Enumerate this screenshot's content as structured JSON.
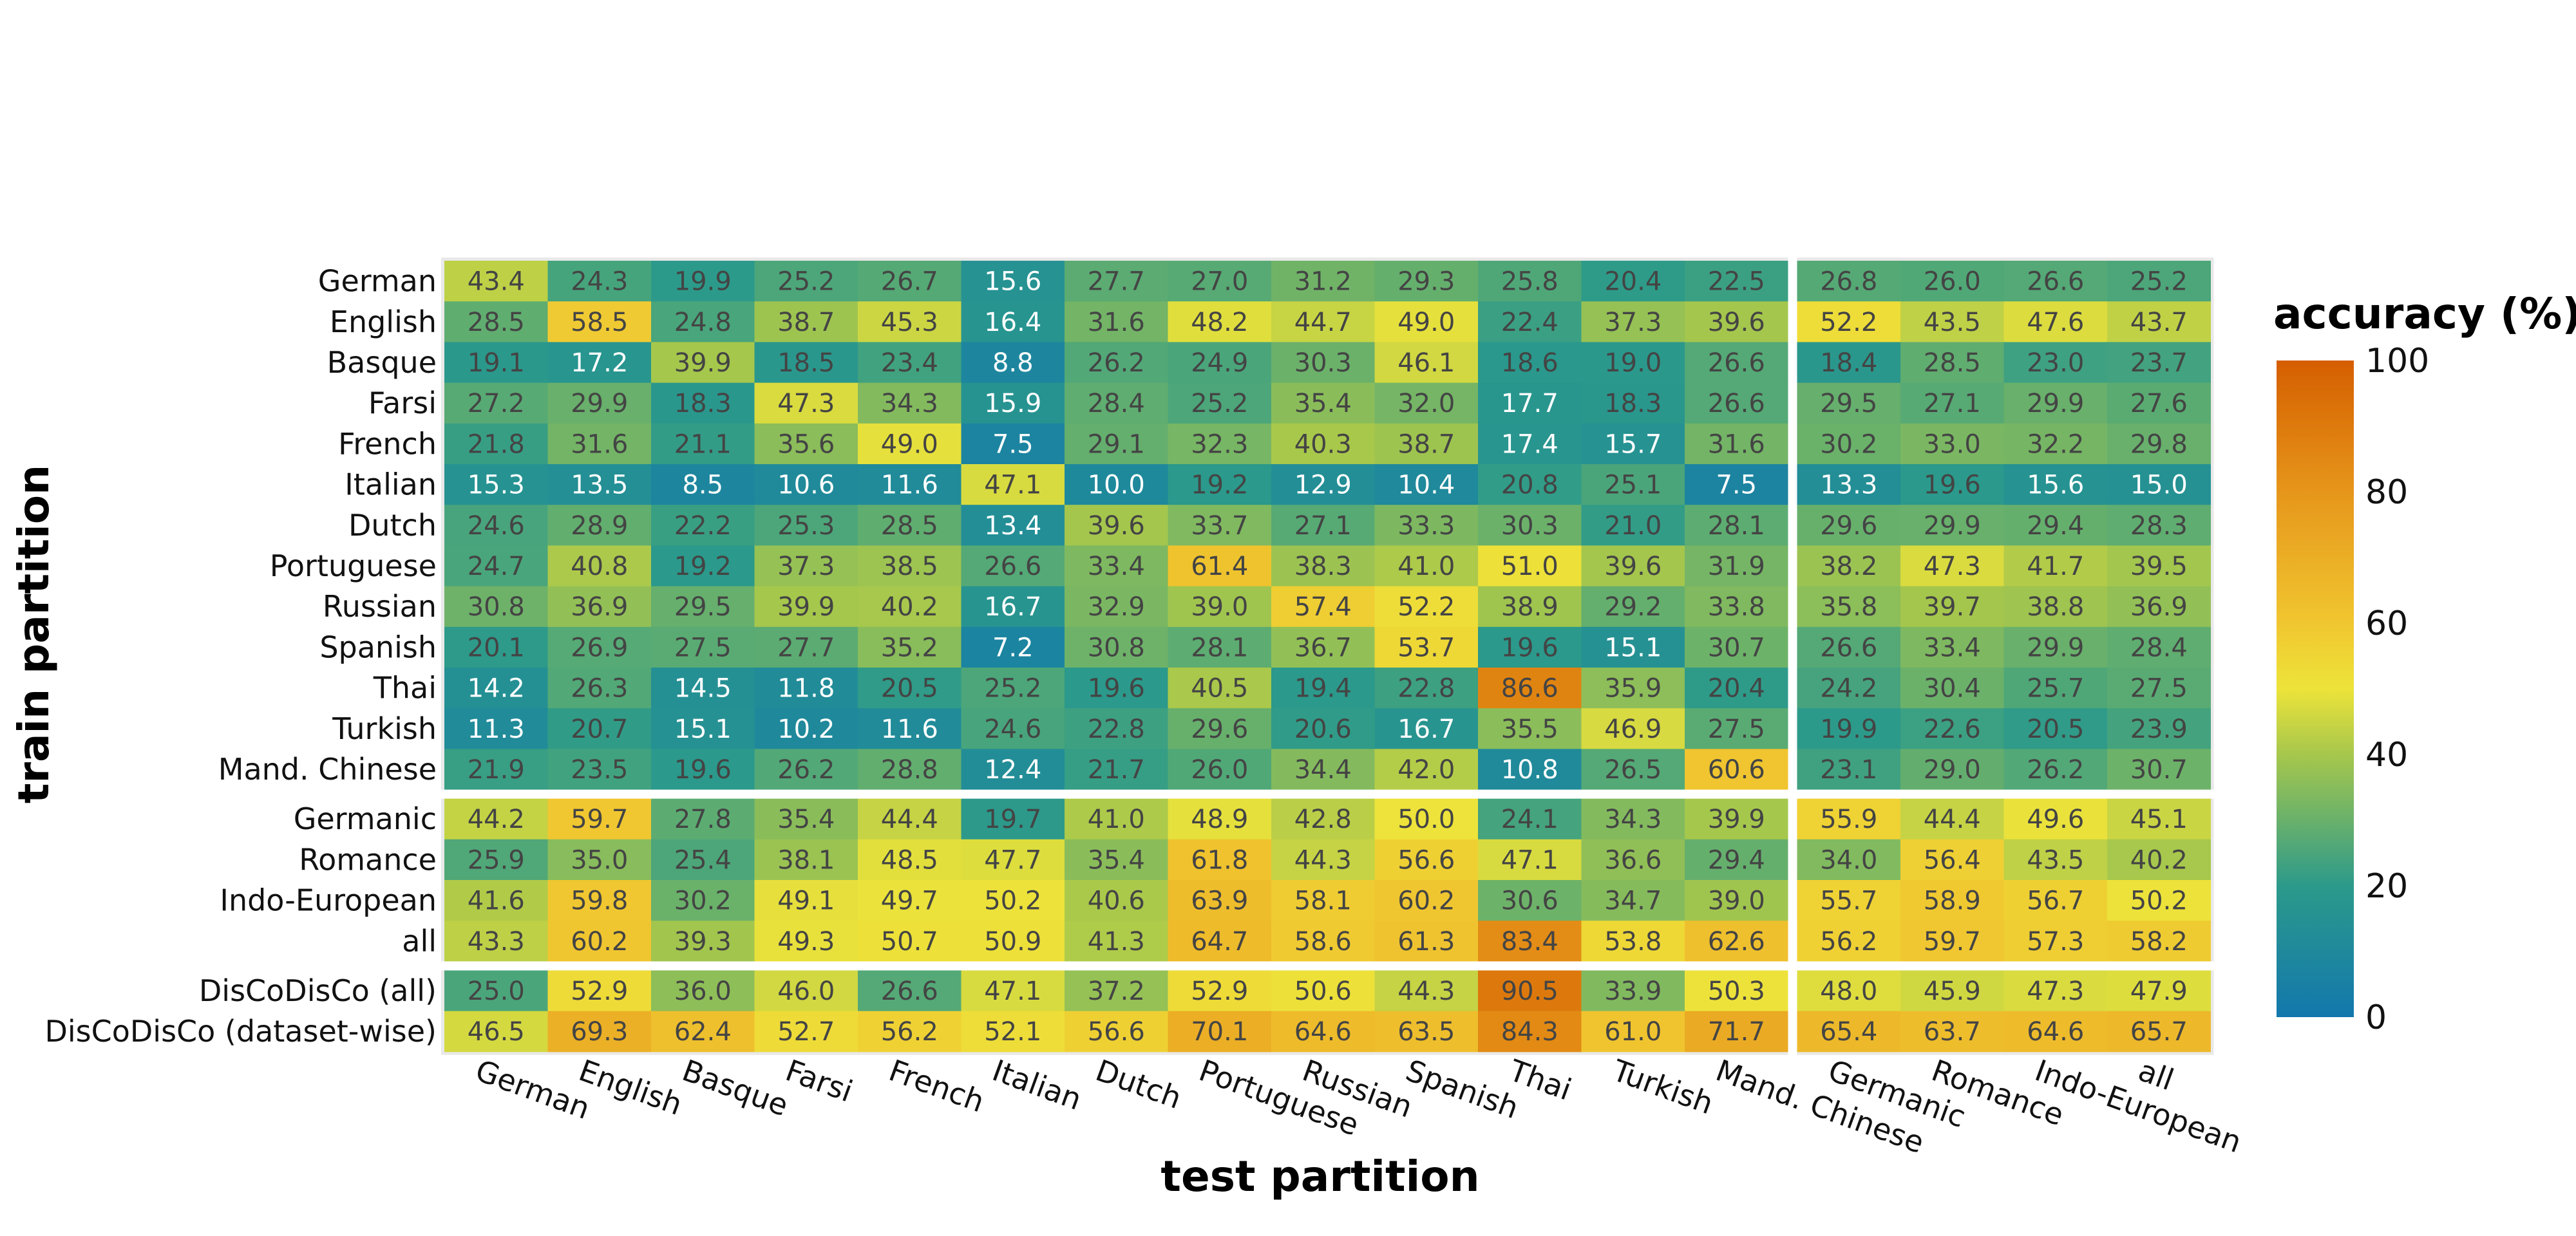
{
  "chart_data": {
    "type": "heatmap",
    "xlabel": "test partition",
    "ylabel": "train partition",
    "x_categories": [
      "German",
      "English",
      "Basque",
      "Farsi",
      "French",
      "Italian",
      "Dutch",
      "Portuguese",
      "Russian",
      "Spanish",
      "Thai",
      "Turkish",
      "Mand. Chinese",
      "Germanic",
      "Romance",
      "Indo-European",
      "all"
    ],
    "y_categories": [
      "German",
      "English",
      "Basque",
      "Farsi",
      "French",
      "Italian",
      "Dutch",
      "Portuguese",
      "Russian",
      "Spanish",
      "Thai",
      "Turkish",
      "Mand. Chinese",
      "Germanic",
      "Romance",
      "Indo-European",
      "all",
      "DisCoDisCo (all)",
      "DisCoDisCo (dataset-wise)"
    ],
    "values": [
      [
        43.4,
        24.3,
        19.9,
        25.2,
        26.7,
        15.6,
        27.7,
        27.0,
        31.2,
        29.3,
        25.8,
        20.4,
        22.5,
        26.8,
        26.0,
        26.6,
        25.2
      ],
      [
        28.5,
        58.5,
        24.8,
        38.7,
        45.3,
        16.4,
        31.6,
        48.2,
        44.7,
        49.0,
        22.4,
        37.3,
        39.6,
        52.2,
        43.5,
        47.6,
        43.7
      ],
      [
        19.1,
        17.2,
        39.9,
        18.5,
        23.4,
        8.8,
        26.2,
        24.9,
        30.3,
        46.1,
        18.6,
        19.0,
        26.6,
        18.4,
        28.5,
        23.0,
        23.7
      ],
      [
        27.2,
        29.9,
        18.3,
        47.3,
        34.3,
        15.9,
        28.4,
        25.2,
        35.4,
        32.0,
        17.7,
        18.3,
        26.6,
        29.5,
        27.1,
        29.9,
        27.6
      ],
      [
        21.8,
        31.6,
        21.1,
        35.6,
        49.0,
        7.5,
        29.1,
        32.3,
        40.3,
        38.7,
        17.4,
        15.7,
        31.6,
        30.2,
        33.0,
        32.2,
        29.8
      ],
      [
        15.3,
        13.5,
        8.5,
        10.6,
        11.6,
        47.1,
        10.0,
        19.2,
        12.9,
        10.4,
        20.8,
        25.1,
        7.5,
        13.3,
        19.6,
        15.6,
        15.0
      ],
      [
        24.6,
        28.9,
        22.2,
        25.3,
        28.5,
        13.4,
        39.6,
        33.7,
        27.1,
        33.3,
        30.3,
        21.0,
        28.1,
        29.6,
        29.9,
        29.4,
        28.3
      ],
      [
        24.7,
        40.8,
        19.2,
        37.3,
        38.5,
        26.6,
        33.4,
        61.4,
        38.3,
        41.0,
        51.0,
        39.6,
        31.9,
        38.2,
        47.3,
        41.7,
        39.5
      ],
      [
        30.8,
        36.9,
        29.5,
        39.9,
        40.2,
        16.7,
        32.9,
        39.0,
        57.4,
        52.2,
        38.9,
        29.2,
        33.8,
        35.8,
        39.7,
        38.8,
        36.9
      ],
      [
        20.1,
        26.9,
        27.5,
        27.7,
        35.2,
        7.2,
        30.8,
        28.1,
        36.7,
        53.7,
        19.6,
        15.1,
        30.7,
        26.6,
        33.4,
        29.9,
        28.4
      ],
      [
        14.2,
        26.3,
        14.5,
        11.8,
        20.5,
        25.2,
        19.6,
        40.5,
        19.4,
        22.8,
        86.6,
        35.9,
        20.4,
        24.2,
        30.4,
        25.7,
        27.5
      ],
      [
        11.3,
        20.7,
        15.1,
        10.2,
        11.6,
        24.6,
        22.8,
        29.6,
        20.6,
        16.7,
        35.5,
        46.9,
        27.5,
        19.9,
        22.6,
        20.5,
        23.9
      ],
      [
        21.9,
        23.5,
        19.6,
        26.2,
        28.8,
        12.4,
        21.7,
        26.0,
        34.4,
        42.0,
        10.8,
        26.5,
        60.6,
        23.1,
        29.0,
        26.2,
        30.7
      ],
      [
        44.2,
        59.7,
        27.8,
        35.4,
        44.4,
        19.7,
        41.0,
        48.9,
        42.8,
        50.0,
        24.1,
        34.3,
        39.9,
        55.9,
        44.4,
        49.6,
        45.1
      ],
      [
        25.9,
        35.0,
        25.4,
        38.1,
        48.5,
        47.7,
        35.4,
        61.8,
        44.3,
        56.6,
        47.1,
        36.6,
        29.4,
        34.0,
        56.4,
        43.5,
        40.2
      ],
      [
        41.6,
        59.8,
        30.2,
        49.1,
        49.7,
        50.2,
        40.6,
        63.9,
        58.1,
        60.2,
        30.6,
        34.7,
        39.0,
        55.7,
        58.9,
        56.7,
        50.2
      ],
      [
        43.3,
        60.2,
        39.3,
        49.3,
        50.7,
        50.9,
        41.3,
        64.7,
        58.6,
        61.3,
        83.4,
        53.8,
        62.6,
        56.2,
        59.7,
        57.3,
        58.2
      ],
      [
        25.0,
        52.9,
        36.0,
        46.0,
        26.6,
        47.1,
        37.2,
        52.9,
        50.6,
        44.3,
        90.5,
        33.9,
        50.3,
        48.0,
        45.9,
        47.3,
        47.9
      ],
      [
        46.5,
        69.3,
        62.4,
        52.7,
        56.2,
        52.1,
        56.6,
        70.1,
        64.6,
        63.5,
        84.3,
        61.0,
        71.7,
        65.4,
        63.7,
        64.6,
        65.7
      ]
    ],
    "colorbar": {
      "title": "accuracy (%)",
      "range": [
        0,
        100
      ],
      "ticks": [
        "0",
        "20",
        "40",
        "60",
        "80",
        "100"
      ],
      "colors": {
        "0": "#1277ad",
        "20": "#2c9a8a",
        "40": "#a6c74c",
        "50": "#ede33a",
        "60": "#f0c630",
        "80": "#e6961a",
        "100": "#d55e00"
      }
    },
    "grid": false,
    "legend_position": "right"
  }
}
